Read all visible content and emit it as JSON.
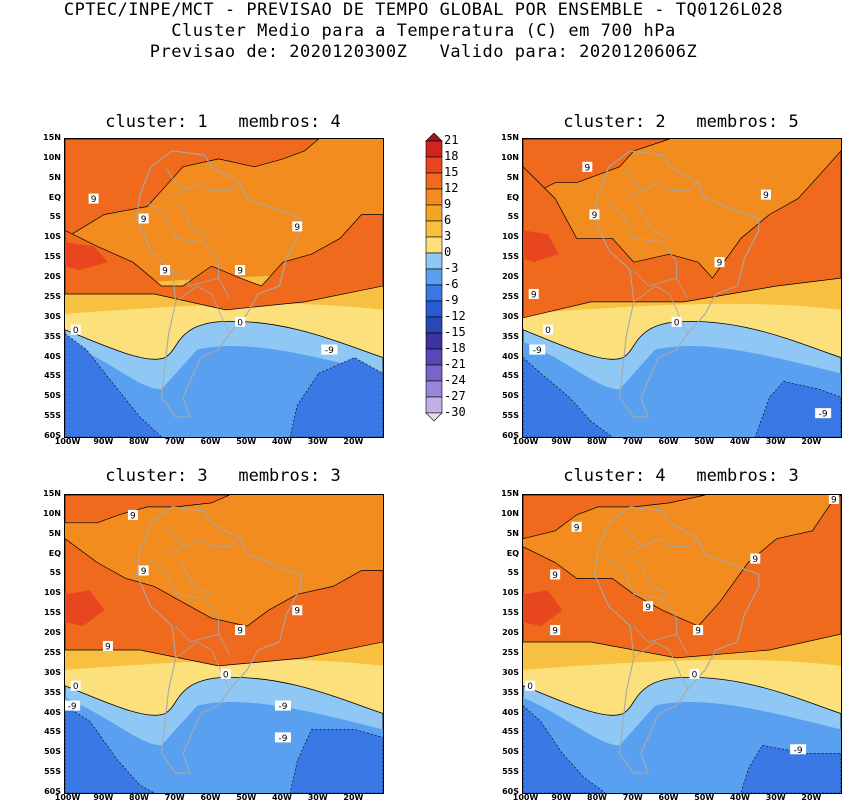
{
  "header": {
    "line1": "CPTEC/INPE/MCT - PREVISAO DE TEMPO GLOBAL POR ENSEMBLE - TQ0126L028",
    "line2": "Cluster Medio para a Temperatura (C) em 700 hPa",
    "line3": "Previsao de: 2020120300Z   Valido para: 2020120606Z"
  },
  "axes": {
    "lat_labels": [
      "15N",
      "10N",
      "5N",
      "EQ",
      "5S",
      "10S",
      "15S",
      "20S",
      "25S",
      "30S",
      "35S",
      "40S",
      "45S",
      "50S",
      "55S",
      "60S"
    ],
    "lon_labels": [
      "100W",
      "90W",
      "80W",
      "70W",
      "60W",
      "50W",
      "40W",
      "30W",
      "20W"
    ]
  },
  "colorbar": {
    "labels": [
      "21",
      "18",
      "15",
      "12",
      "9",
      "6",
      "3",
      "0",
      "-3",
      "-6",
      "-9",
      "-12",
      "-15",
      "-18",
      "-21",
      "-24",
      "-27",
      "-30"
    ],
    "colors": [
      "#a0141e",
      "#d2231e",
      "#e8461e",
      "#f06a1e",
      "#f28c1e",
      "#f5a524",
      "#f8c040",
      "#fbe07c",
      "#8fc8f5",
      "#5aa0f0",
      "#3a78e6",
      "#2a5ad2",
      "#2848b4",
      "#3c32a0",
      "#5a46b4",
      "#7a64c8",
      "#9a86d8",
      "#c0b0e6",
      "#e6dcf5"
    ]
  },
  "panels": [
    {
      "title": "cluster: 1   membros: 4",
      "labels": [
        "9",
        "9",
        "9",
        "9",
        "9",
        "0",
        "0",
        "-9"
      ]
    },
    {
      "title": "cluster: 2   membros: 5",
      "labels": [
        "9",
        "9",
        "9",
        "9",
        "9",
        "0",
        "0",
        "-9",
        "-9"
      ]
    },
    {
      "title": "cluster: 3   membros: 3",
      "labels": [
        "9",
        "9",
        "9",
        "9",
        "9",
        "0",
        "0",
        "-9",
        "-9",
        "-9"
      ]
    },
    {
      "title": "cluster: 4   membros: 3",
      "labels": [
        "9",
        "9",
        "9",
        "9",
        "9",
        "9",
        "9",
        "0",
        "0",
        "-9"
      ]
    }
  ]
}
